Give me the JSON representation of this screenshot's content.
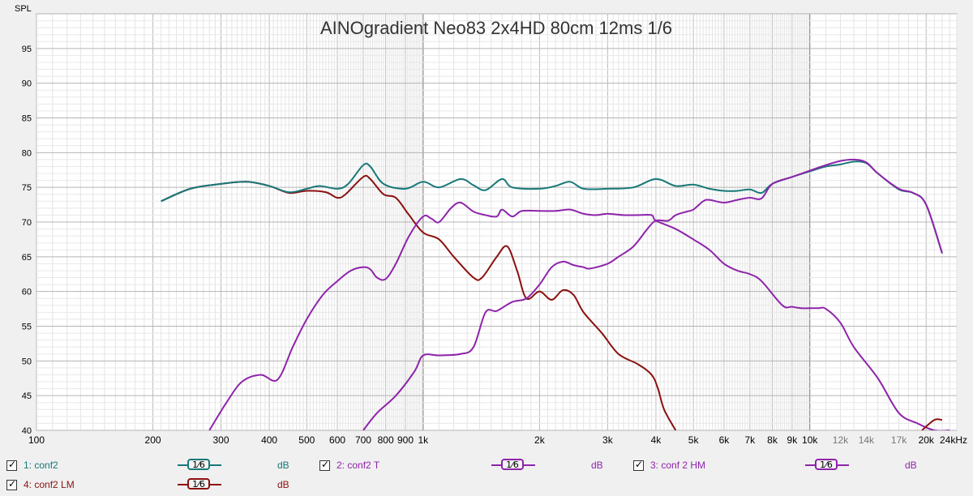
{
  "chart_data": {
    "type": "line",
    "title": "AINOgradient Neo83 2x4HD 80cm 12ms 1/6",
    "ylabel": "SPL",
    "xunit": "Hz",
    "x_scale": "log",
    "xlim": [
      100,
      24000
    ],
    "ylim": [
      40,
      100
    ],
    "grid": true,
    "y_ticks": [
      40,
      45,
      50,
      55,
      60,
      65,
      70,
      75,
      80,
      85,
      90,
      95
    ],
    "x_ticks": [
      {
        "f": 100,
        "label": "100"
      },
      {
        "f": 200,
        "label": "200"
      },
      {
        "f": 300,
        "label": "300"
      },
      {
        "f": 400,
        "label": "400"
      },
      {
        "f": 500,
        "label": "500"
      },
      {
        "f": 600,
        "label": "600"
      },
      {
        "f": 700,
        "label": "700"
      },
      {
        "f": 800,
        "label": "800"
      },
      {
        "f": 900,
        "label": "900"
      },
      {
        "f": 1000,
        "label": "1k"
      },
      {
        "f": 2000,
        "label": "2k"
      },
      {
        "f": 3000,
        "label": "3k"
      },
      {
        "f": 4000,
        "label": "4k"
      },
      {
        "f": 5000,
        "label": "5k"
      },
      {
        "f": 6000,
        "label": "6k"
      },
      {
        "f": 7000,
        "label": "7k"
      },
      {
        "f": 8000,
        "label": "8k"
      },
      {
        "f": 9000,
        "label": "9k"
      },
      {
        "f": 10000,
        "label": "10k"
      },
      {
        "f": 12000,
        "label": "12k"
      },
      {
        "f": 14000,
        "label": "14k"
      },
      {
        "f": 17000,
        "label": "17k"
      },
      {
        "f": 20000,
        "label": "20k"
      },
      {
        "f": 24000,
        "label": "24kHz"
      }
    ],
    "series": [
      {
        "name": "4: conf2 LM",
        "color": "#8b1010",
        "points": [
          [
            210,
            73
          ],
          [
            250,
            74.8
          ],
          [
            300,
            75.5
          ],
          [
            350,
            75.8
          ],
          [
            400,
            75.2
          ],
          [
            450,
            74.2
          ],
          [
            500,
            74.5
          ],
          [
            560,
            74.3
          ],
          [
            600,
            73.5
          ],
          [
            630,
            74
          ],
          [
            700,
            76.5
          ],
          [
            730,
            76.2
          ],
          [
            790,
            74
          ],
          [
            850,
            73.5
          ],
          [
            920,
            71
          ],
          [
            1000,
            68.5
          ],
          [
            1100,
            67.5
          ],
          [
            1200,
            65
          ],
          [
            1350,
            62
          ],
          [
            1420,
            62
          ],
          [
            1550,
            65
          ],
          [
            1650,
            66.5
          ],
          [
            1750,
            63
          ],
          [
            1850,
            59
          ],
          [
            2000,
            60
          ],
          [
            2150,
            58.8
          ],
          [
            2300,
            60.2
          ],
          [
            2450,
            59.5
          ],
          [
            2600,
            57
          ],
          [
            2900,
            54
          ],
          [
            3200,
            51
          ],
          [
            3600,
            49.5
          ],
          [
            3900,
            48
          ],
          [
            4050,
            46
          ],
          [
            4200,
            43
          ],
          [
            4500,
            40
          ]
        ]
      },
      {
        "name": "1: conf2",
        "color": "#187878",
        "points": [
          [
            210,
            73
          ],
          [
            250,
            74.8
          ],
          [
            300,
            75.5
          ],
          [
            350,
            75.8
          ],
          [
            400,
            75.2
          ],
          [
            450,
            74.3
          ],
          [
            500,
            74.8
          ],
          [
            540,
            75.2
          ],
          [
            600,
            74.8
          ],
          [
            640,
            75.5
          ],
          [
            700,
            78.2
          ],
          [
            730,
            78
          ],
          [
            790,
            75.5
          ],
          [
            900,
            74.8
          ],
          [
            1000,
            75.8
          ],
          [
            1100,
            75
          ],
          [
            1250,
            76.2
          ],
          [
            1350,
            75.3
          ],
          [
            1450,
            74.6
          ],
          [
            1600,
            76.2
          ],
          [
            1700,
            75
          ],
          [
            2000,
            74.8
          ],
          [
            2200,
            75.2
          ],
          [
            2400,
            75.8
          ],
          [
            2600,
            74.8
          ],
          [
            3000,
            74.8
          ],
          [
            3500,
            75
          ],
          [
            4000,
            76.2
          ],
          [
            4500,
            75.2
          ],
          [
            5000,
            75.4
          ],
          [
            5500,
            74.8
          ],
          [
            6000,
            74.5
          ],
          [
            6500,
            74.5
          ],
          [
            7000,
            74.7
          ],
          [
            7500,
            74.2
          ],
          [
            8000,
            75.5
          ],
          [
            9000,
            76.5
          ],
          [
            10000,
            77.3
          ],
          [
            11000,
            78
          ],
          [
            12000,
            78.3
          ],
          [
            13000,
            78.7
          ],
          [
            14000,
            78.5
          ],
          [
            15000,
            77
          ],
          [
            17000,
            74.7
          ],
          [
            18500,
            74.2
          ],
          [
            20000,
            72.5
          ],
          [
            22000,
            65.5
          ]
        ]
      },
      {
        "name": "2: conf2 T",
        "color": "#8e24aa",
        "points": [
          [
            700,
            40
          ],
          [
            760,
            42.5
          ],
          [
            850,
            45
          ],
          [
            950,
            48.5
          ],
          [
            1000,
            50.8
          ],
          [
            1100,
            50.8
          ],
          [
            1250,
            51
          ],
          [
            1350,
            52
          ],
          [
            1450,
            57
          ],
          [
            1550,
            57.2
          ],
          [
            1700,
            58.5
          ],
          [
            1850,
            59
          ],
          [
            2000,
            61
          ],
          [
            2150,
            63.5
          ],
          [
            2300,
            64.3
          ],
          [
            2450,
            63.8
          ],
          [
            2600,
            63.5
          ],
          [
            2700,
            63.3
          ],
          [
            3000,
            64
          ],
          [
            3200,
            65
          ],
          [
            3500,
            66.5
          ],
          [
            3800,
            69
          ],
          [
            4000,
            70.2
          ],
          [
            4300,
            70.2
          ],
          [
            4500,
            71
          ],
          [
            4800,
            71.5
          ],
          [
            5000,
            71.8
          ],
          [
            5300,
            73
          ],
          [
            5500,
            73.2
          ],
          [
            6000,
            72.8
          ],
          [
            6500,
            73.2
          ],
          [
            7000,
            73.5
          ],
          [
            7500,
            73.4
          ],
          [
            8000,
            75.5
          ],
          [
            9000,
            76.5
          ],
          [
            10000,
            77.4
          ],
          [
            11000,
            78.2
          ],
          [
            12000,
            78.8
          ],
          [
            13000,
            79
          ],
          [
            14000,
            78.6
          ],
          [
            15000,
            77
          ],
          [
            17000,
            74.8
          ],
          [
            18500,
            74.2
          ],
          [
            20000,
            72.5
          ],
          [
            22000,
            65.5
          ]
        ]
      },
      {
        "name": "3: conf 2 HM",
        "color": "#8e24aa",
        "points": [
          [
            280,
            40
          ],
          [
            310,
            44
          ],
          [
            340,
            47
          ],
          [
            380,
            48
          ],
          [
            420,
            47.3
          ],
          [
            460,
            52
          ],
          [
            500,
            56
          ],
          [
            550,
            59.5
          ],
          [
            600,
            61.5
          ],
          [
            650,
            63
          ],
          [
            700,
            63.5
          ],
          [
            730,
            63.2
          ],
          [
            760,
            62
          ],
          [
            800,
            61.8
          ],
          [
            850,
            64
          ],
          [
            920,
            68
          ],
          [
            1000,
            70.8
          ],
          [
            1050,
            70.5
          ],
          [
            1100,
            70
          ],
          [
            1180,
            72
          ],
          [
            1250,
            72.8
          ],
          [
            1350,
            71.5
          ],
          [
            1450,
            71
          ],
          [
            1550,
            70.8
          ],
          [
            1600,
            71.8
          ],
          [
            1700,
            70.8
          ],
          [
            1800,
            71.6
          ],
          [
            2000,
            71.6
          ],
          [
            2200,
            71.6
          ],
          [
            2400,
            71.8
          ],
          [
            2600,
            71.2
          ],
          [
            2800,
            71
          ],
          [
            3000,
            71.2
          ],
          [
            3300,
            71
          ],
          [
            3600,
            71
          ],
          [
            3900,
            71
          ],
          [
            4000,
            70.2
          ],
          [
            4500,
            69
          ],
          [
            5000,
            67.5
          ],
          [
            5500,
            66
          ],
          [
            6000,
            64
          ],
          [
            6500,
            63
          ],
          [
            7000,
            62.5
          ],
          [
            7500,
            61.5
          ],
          [
            8500,
            58
          ],
          [
            9000,
            57.8
          ],
          [
            9500,
            57.6
          ],
          [
            10500,
            57.6
          ],
          [
            11000,
            57.5
          ],
          [
            12000,
            55.5
          ],
          [
            13000,
            52
          ],
          [
            15000,
            47.5
          ],
          [
            17000,
            42.5
          ],
          [
            19000,
            41
          ],
          [
            21000,
            40
          ],
          [
            23000,
            40
          ]
        ]
      },
      {
        "name": "4: conf2 LM tail",
        "color": "#8b1010",
        "points": [
          [
            19500,
            40
          ],
          [
            21000,
            41.5
          ],
          [
            22000,
            41.5
          ]
        ]
      }
    ]
  },
  "legend": [
    {
      "check": "✓",
      "label": "1: conf2",
      "smoothing": "1⁄6",
      "unit": "dB",
      "color": "#187878"
    },
    {
      "check": "✓",
      "label": "2: conf2 T",
      "smoothing": "1⁄6",
      "unit": "dB",
      "color": "#8e24aa"
    },
    {
      "check": "✓",
      "label": "3: conf 2 HM",
      "smoothing": "1⁄6",
      "unit": "dB",
      "color": "#8e24aa"
    },
    {
      "check": "✓",
      "label": "4: conf2 LM",
      "smoothing": "1⁄6",
      "unit": "dB",
      "color": "#8b1010"
    }
  ]
}
